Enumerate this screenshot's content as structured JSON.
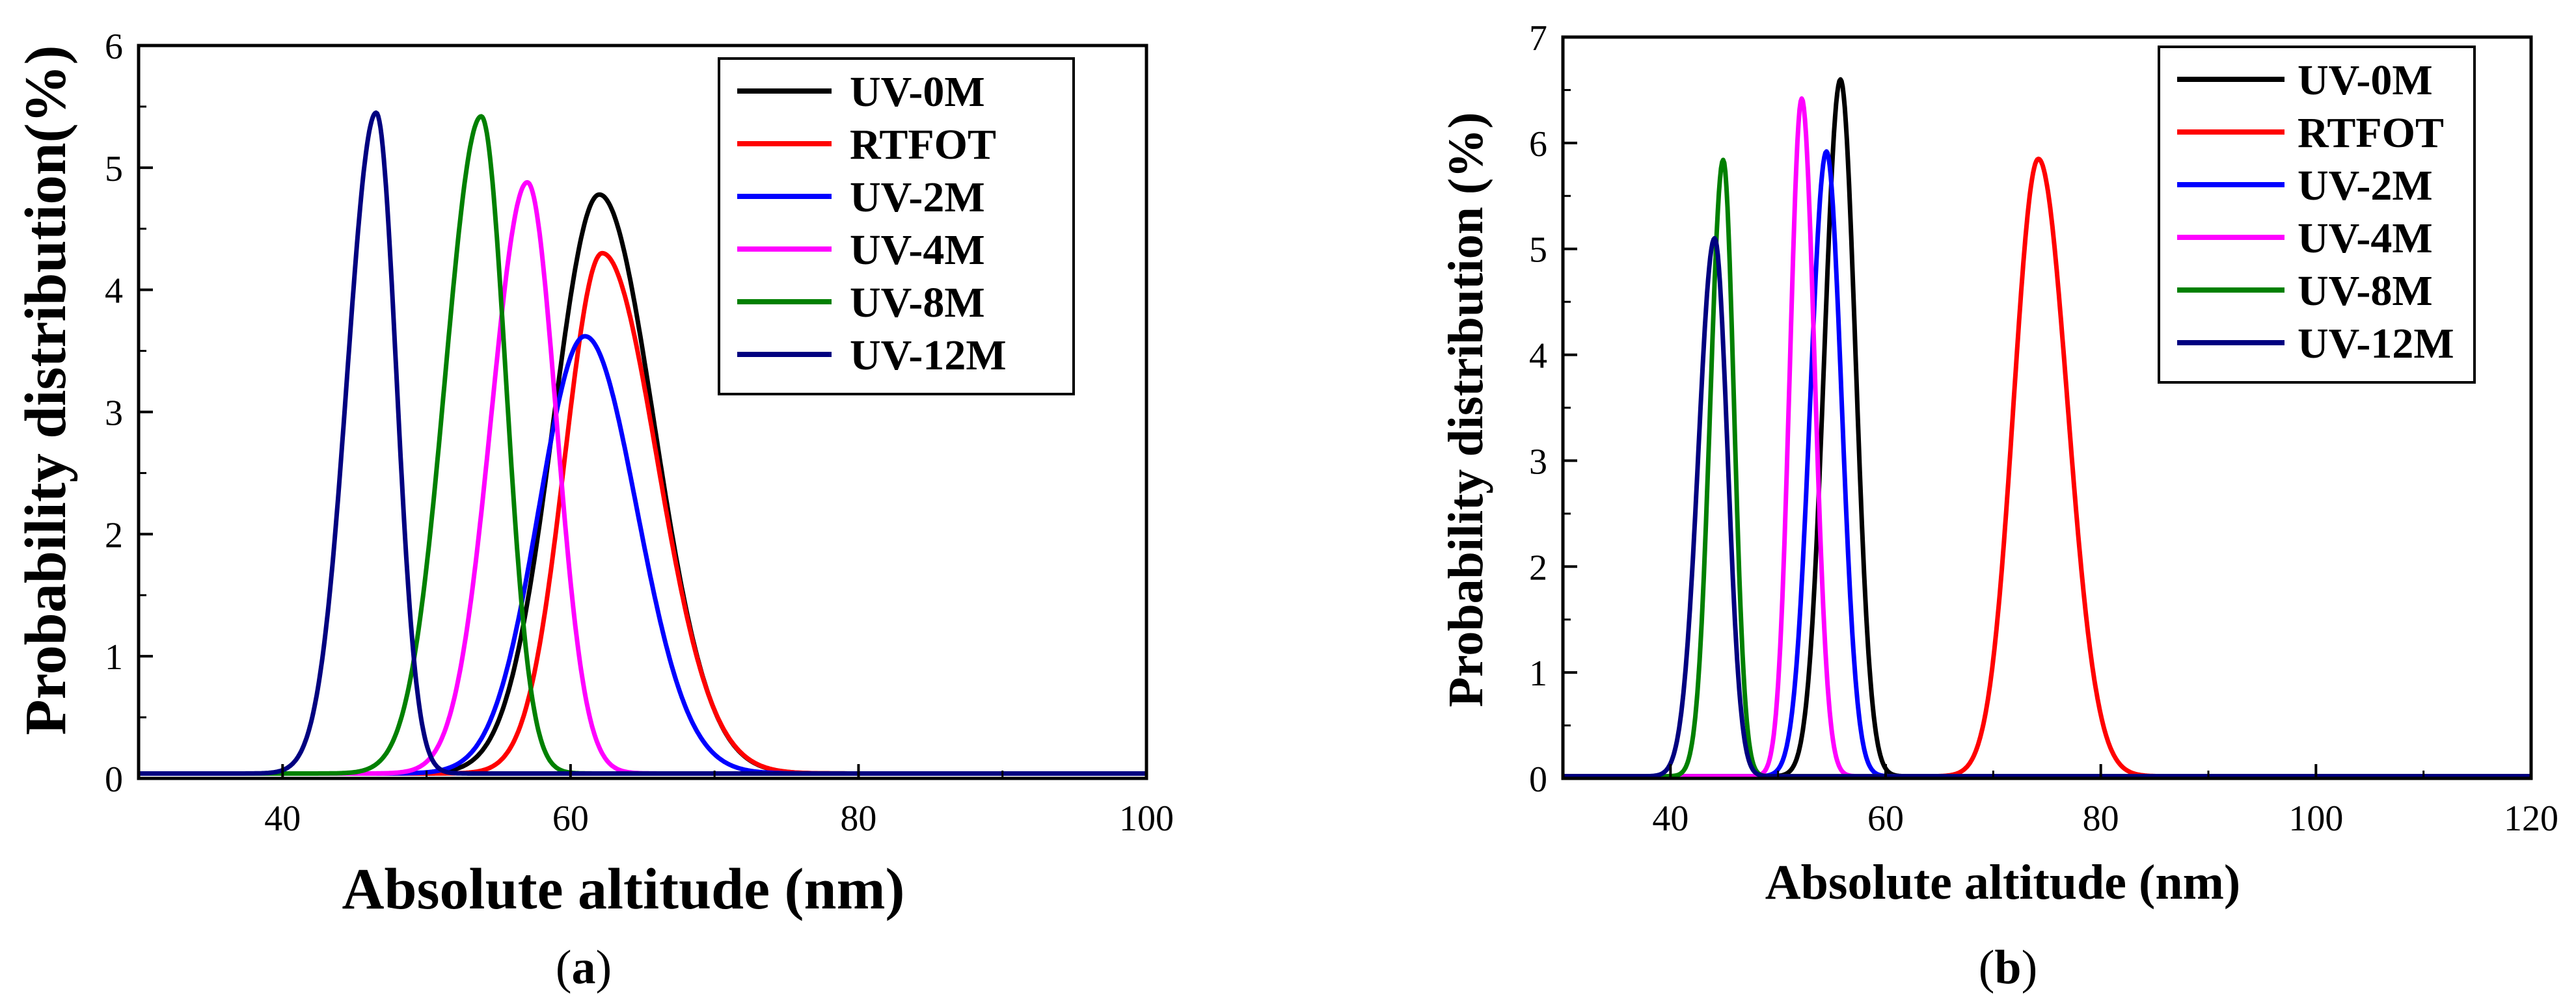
{
  "chart_data": [
    {
      "type": "line",
      "panel": "a",
      "caption": "(a)",
      "caption_letter": "a",
      "xlabel": "Absolute altitude (nm)",
      "ylabel": "Probability distribution(%)",
      "xlim": [
        30,
        100
      ],
      "ylim": [
        0,
        6
      ],
      "xticks": [
        40,
        60,
        80,
        100
      ],
      "yticks": [
        0,
        1,
        2,
        3,
        4,
        5,
        6
      ],
      "legend_position": "top-right",
      "series": [
        {
          "name": "UV-0M",
          "color": "#000000",
          "peak_x": 62,
          "peak_y": 4.78,
          "left_width": 3.2,
          "right_width": 3.8,
          "baseline": 0.04
        },
        {
          "name": "RTFOT",
          "color": "#ff0000",
          "peak_x": 62.2,
          "peak_y": 4.3,
          "left_width": 2.6,
          "right_width": 3.8,
          "baseline": 0.04
        },
        {
          "name": "UV-2M",
          "color": "#0000ff",
          "peak_x": 61,
          "peak_y": 3.62,
          "left_width": 3.2,
          "right_width": 3.6,
          "baseline": 0.04
        },
        {
          "name": "UV-4M",
          "color": "#ff00ff",
          "peak_x": 57,
          "peak_y": 4.88,
          "left_width": 2.5,
          "right_width": 2.0,
          "baseline": 0.04
        },
        {
          "name": "UV-8M",
          "color": "#008000",
          "peak_x": 53.8,
          "peak_y": 5.42,
          "left_width": 2.5,
          "right_width": 1.7,
          "baseline": 0.04
        },
        {
          "name": "UV-12M",
          "color": "#000080",
          "peak_x": 46.5,
          "peak_y": 5.45,
          "left_width": 2.0,
          "right_width": 1.4,
          "baseline": 0.04
        }
      ]
    },
    {
      "type": "line",
      "panel": "b",
      "caption": "(b)",
      "caption_letter": "b",
      "xlabel": "Absolute altitude (nm)",
      "ylabel": "Probability distribution (%)",
      "xlim": [
        30,
        120
      ],
      "ylim": [
        0,
        7
      ],
      "xticks": [
        40,
        60,
        80,
        100,
        120
      ],
      "yticks": [
        0,
        1,
        2,
        3,
        4,
        5,
        6,
        7
      ],
      "legend_position": "top-right",
      "series": [
        {
          "name": "UV-0M",
          "color": "#000000",
          "peak_x": 55.8,
          "peak_y": 6.6,
          "left_width": 1.5,
          "right_width": 1.4,
          "baseline": 0.02
        },
        {
          "name": "RTFOT",
          "color": "#ff0000",
          "peak_x": 74.2,
          "peak_y": 5.85,
          "left_width": 2.3,
          "right_width": 2.7,
          "baseline": 0.02
        },
        {
          "name": "UV-2M",
          "color": "#0000ff",
          "peak_x": 54.5,
          "peak_y": 5.92,
          "left_width": 1.5,
          "right_width": 1.4,
          "baseline": 0.02
        },
        {
          "name": "UV-4M",
          "color": "#ff00ff",
          "peak_x": 52.2,
          "peak_y": 6.42,
          "left_width": 1.1,
          "right_width": 1.2,
          "baseline": 0.02
        },
        {
          "name": "UV-8M",
          "color": "#008000",
          "peak_x": 44.9,
          "peak_y": 5.84,
          "left_width": 1.2,
          "right_width": 1.0,
          "baseline": 0.02
        },
        {
          "name": "UV-12M",
          "color": "#000080",
          "peak_x": 44.1,
          "peak_y": 5.1,
          "left_width": 1.5,
          "right_width": 1.2,
          "baseline": 0.02
        }
      ]
    }
  ]
}
